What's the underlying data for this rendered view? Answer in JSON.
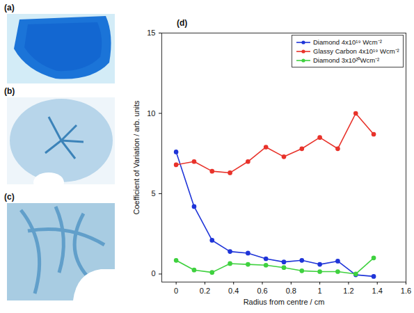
{
  "images": [
    {
      "label": "(a)"
    },
    {
      "label": "(b)"
    },
    {
      "label": "(c)"
    }
  ],
  "chart_data": {
    "type": "line",
    "panel_label": "(d)",
    "xlabel": "Radius from centre / cm",
    "ylabel": "Coefficient of Variation / arb. units",
    "x": [
      0,
      0.125,
      0.25,
      0.375,
      0.5,
      0.625,
      0.75,
      0.875,
      1.0,
      1.125,
      1.25,
      1.375
    ],
    "series": [
      {
        "name": "Diamond 4x10¹⁹ Wcm⁻²",
        "color": "#1f35d8",
        "marker": "o",
        "line_style": "solid",
        "values": [
          7.6,
          4.2,
          2.1,
          1.4,
          1.3,
          0.95,
          0.75,
          0.85,
          0.6,
          0.8,
          -0.05,
          -0.15
        ]
      },
      {
        "name": "Glassy Carbon 4x10¹⁹ Wcm⁻²",
        "color": "#e8332b",
        "marker": "o",
        "line_style": "solid",
        "values": [
          6.8,
          7.0,
          6.4,
          6.3,
          7.0,
          7.9,
          7.3,
          7.8,
          8.5,
          7.8,
          10.0,
          8.7
        ]
      },
      {
        "name": "Diamond 3x10²⁰Wcm⁻²",
        "color": "#3fd13f",
        "marker": "o",
        "line_style": "solid",
        "values": [
          0.85,
          0.25,
          0.1,
          0.65,
          0.6,
          0.55,
          0.4,
          0.2,
          0.15,
          0.15,
          0.0,
          1.0
        ]
      }
    ],
    "xlim": [
      -0.1,
      1.6
    ],
    "xticks": [
      0,
      0.2,
      0.4,
      0.6,
      0.8,
      1,
      1.2,
      1.4,
      1.6
    ],
    "ylim": [
      -0.5,
      15
    ],
    "yticks": [
      0,
      5,
      10,
      15
    ],
    "grid": false,
    "legend": "upper right"
  }
}
